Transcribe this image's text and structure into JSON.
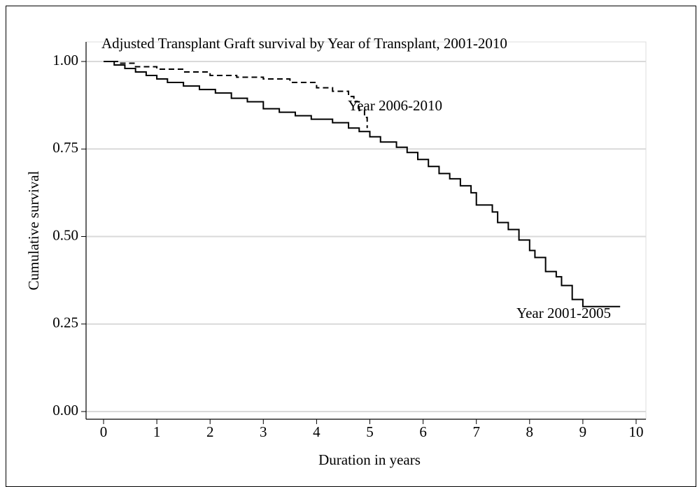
{
  "chart_data": {
    "type": "line",
    "title": "Adjusted Transplant Graft survival by Year of Transplant, 2001-2010",
    "x_label": "Duration in years",
    "y_label": "Cumulative survival",
    "step": true,
    "grid": true,
    "xlim": [
      0,
      10
    ],
    "xticks": [
      0,
      1,
      2,
      3,
      4,
      5,
      6,
      7,
      8,
      9,
      10
    ],
    "ylim": [
      0,
      1
    ],
    "yticks": [
      {
        "value": 0,
        "label": "0.00"
      },
      {
        "value": 0.25,
        "label": "0.25"
      },
      {
        "value": 0.5,
        "label": "0.50"
      },
      {
        "value": 0.75,
        "label": "0.75"
      },
      {
        "value": 1,
        "label": "1.00"
      }
    ],
    "series": [
      {
        "name": "Year 2006-2010",
        "color": "#000000",
        "line_style": "dashed",
        "x": [
          0,
          0.3,
          0.6,
          1.0,
          1.5,
          2.0,
          2.5,
          3.0,
          3.5,
          4.0,
          4.3,
          4.6,
          4.7,
          4.8,
          4.9,
          4.95
        ],
        "values": [
          1.0,
          0.995,
          0.985,
          0.978,
          0.97,
          0.96,
          0.955,
          0.95,
          0.94,
          0.925,
          0.915,
          0.9,
          0.885,
          0.86,
          0.84,
          0.81
        ]
      },
      {
        "name": "Year 2001-2005",
        "color": "#000000",
        "line_style": "solid",
        "x": [
          0,
          0.2,
          0.4,
          0.6,
          0.8,
          1.0,
          1.2,
          1.5,
          1.8,
          2.1,
          2.4,
          2.7,
          3.0,
          3.3,
          3.6,
          3.9,
          4.3,
          4.6,
          4.8,
          5.0,
          5.2,
          5.5,
          5.7,
          5.9,
          6.1,
          6.3,
          6.5,
          6.7,
          6.9,
          7.0,
          7.3,
          7.4,
          7.6,
          7.8,
          8.0,
          8.1,
          8.3,
          8.5,
          8.6,
          8.8,
          9.0,
          9.7
        ],
        "values": [
          1.0,
          0.99,
          0.98,
          0.97,
          0.96,
          0.95,
          0.94,
          0.93,
          0.92,
          0.91,
          0.895,
          0.885,
          0.865,
          0.855,
          0.845,
          0.835,
          0.825,
          0.81,
          0.8,
          0.785,
          0.77,
          0.755,
          0.74,
          0.72,
          0.7,
          0.68,
          0.665,
          0.645,
          0.625,
          0.59,
          0.57,
          0.54,
          0.52,
          0.49,
          0.46,
          0.44,
          0.4,
          0.385,
          0.36,
          0.32,
          0.3,
          0.3
        ]
      }
    ]
  }
}
